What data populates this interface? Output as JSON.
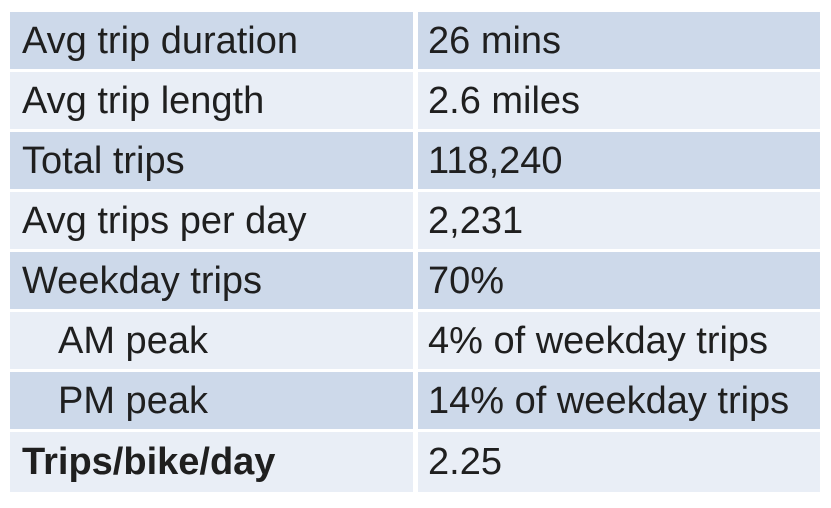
{
  "table": {
    "rows": [
      {
        "label": "Avg trip duration",
        "value": "26 mins"
      },
      {
        "label": "Avg trip length",
        "value": "2.6 miles"
      },
      {
        "label": "Total trips",
        "value": "118,240"
      },
      {
        "label": "Avg trips per day",
        "value": "2,231"
      },
      {
        "label": "Weekday trips",
        "value": "70%"
      },
      {
        "label": "AM peak",
        "value": "4% of weekday trips"
      },
      {
        "label": "PM peak",
        "value": "14% of weekday trips"
      },
      {
        "label": "Trips/bike/day",
        "value": "2.25"
      }
    ],
    "colors": {
      "band_dark": "#cdd9ea",
      "band_light": "#e9eef6",
      "divider": "#ffffff",
      "text": "#1f1f1f"
    }
  }
}
